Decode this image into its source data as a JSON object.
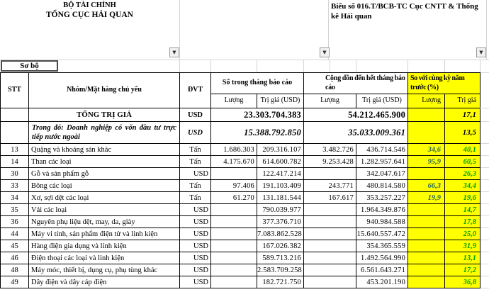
{
  "header": {
    "org_line1": "BỘ TÀI CHÍNH",
    "org_line2": "TỔNG CỤC HẢI QUAN",
    "form_label": "Biểu số 016.T/BCB-TC Cục CNTT & Thống kê Hải quan"
  },
  "icons": {
    "dropdown_glyph": "▼"
  },
  "tab": {
    "label": "Sơ bộ"
  },
  "table": {
    "columns": {
      "stt": "STT",
      "group": "Nhóm/Mặt hàng chủ yếu",
      "unit": "ĐVT",
      "month_group": "Số trong tháng báo cáo",
      "cumulative_group": "Cộng dồn đến hết tháng báo cáo",
      "yoy_group": "So với cùng kỳ năm trước (%)",
      "qty": "Lượng",
      "value_usd": "Trị giá (USD)",
      "cum_qty": "Lượng",
      "cum_value_usd": "Trị giá (USD)",
      "yoy_qty": "Lượng",
      "yoy_value": "Trị giá"
    },
    "total_row": {
      "name": "TỔNG TRỊ GIÁ",
      "unit": "USD",
      "value_month": "23.303.704.383",
      "value_cum": "54.212.465.900",
      "yoy_value": "17,1"
    },
    "fdi_row": {
      "name": "Trong đó: Doanh nghiệp có vốn đầu tư trực tiếp nước ngoài",
      "unit": "USD",
      "value_month": "15.388.792.850",
      "value_cum": "35.033.009.361",
      "yoy_value": "13,5"
    },
    "rows": [
      {
        "stt": "13",
        "name": "Quặng và khoáng sản khác",
        "unit": "Tấn",
        "unit_align": "center",
        "qty_month": "1.686.303",
        "value_month": "209.316.107",
        "qty_cum": "3.482.726",
        "value_cum": "436.714.546",
        "yoy_qty": "34,6",
        "yoy_value": "40,1"
      },
      {
        "stt": "14",
        "name": "Than các loại",
        "unit": "Tấn",
        "unit_align": "center",
        "qty_month": "4.175.670",
        "value_month": "614.600.782",
        "qty_cum": "9.253.428",
        "value_cum": "1.282.957.641",
        "yoy_qty": "95,9",
        "yoy_value": "60,5"
      },
      {
        "stt": "30",
        "name": "Gỗ và sản phẩm gỗ",
        "unit": "USD",
        "unit_align": "right",
        "qty_month": "",
        "value_month": "122.417.214",
        "qty_cum": "",
        "value_cum": "342.047.617",
        "yoy_qty": "",
        "yoy_value": "26,3"
      },
      {
        "stt": "33",
        "name": "Bông các loại",
        "unit": "Tấn",
        "unit_align": "center",
        "qty_month": "97.406",
        "value_month": "191.103.409",
        "qty_cum": "243.771",
        "value_cum": "480.814.580",
        "yoy_qty": "66,3",
        "yoy_value": "34,4"
      },
      {
        "stt": "34",
        "name": "Xơ, sợi dệt các loại",
        "unit": "Tấn",
        "unit_align": "center",
        "qty_month": "61.270",
        "value_month": "131.181.544",
        "qty_cum": "167.617",
        "value_cum": "353.257.227",
        "yoy_qty": "19,9",
        "yoy_value": "19,6"
      },
      {
        "stt": "35",
        "name": "Vải các loại",
        "unit": "USD",
        "unit_align": "right",
        "qty_month": "",
        "value_month": "790.039.977",
        "qty_cum": "",
        "value_cum": "1.964.349.876",
        "yoy_qty": "",
        "yoy_value": "14,7"
      },
      {
        "stt": "36",
        "name": "Nguyên phụ liệu dệt, may, da, giày",
        "unit": "USD",
        "unit_align": "right",
        "qty_month": "",
        "value_month": "377.376.710",
        "qty_cum": "",
        "value_cum": "940.984.588",
        "yoy_qty": "",
        "yoy_value": "17,8"
      },
      {
        "stt": "44",
        "name": "Máy vi tính, sản phẩm điện tử và linh kiện",
        "unit": "USD",
        "unit_align": "right",
        "qty_month": "",
        "value_month": "7.083.862.528",
        "qty_cum": "",
        "value_cum": "15.640.557.472",
        "yoy_qty": "",
        "yoy_value": "25,0"
      },
      {
        "stt": "45",
        "name": "Hàng điện gia dụng và linh kiện",
        "unit": "USD",
        "unit_align": "right",
        "qty_month": "",
        "value_month": "167.026.382",
        "qty_cum": "",
        "value_cum": "354.365.559",
        "yoy_qty": "",
        "yoy_value": "31,9"
      },
      {
        "stt": "46",
        "name": "Điện thoại các loại và linh kiện",
        "unit": "USD",
        "unit_align": "right",
        "qty_month": "",
        "value_month": "589.713.216",
        "qty_cum": "",
        "value_cum": "1.492.564.990",
        "yoy_qty": "",
        "yoy_value": "13,1"
      },
      {
        "stt": "48",
        "name": "Máy móc, thiết bị, dụng cụ, phụ tùng khác",
        "unit": "USD",
        "unit_align": "right",
        "qty_month": "",
        "value_month": "2.583.709.258",
        "qty_cum": "",
        "value_cum": "6.561.643.271",
        "yoy_qty": "",
        "yoy_value": "17,2"
      },
      {
        "stt": "49",
        "name": "Dây điện và dây cáp điện",
        "unit": "USD",
        "unit_align": "right",
        "qty_month": "",
        "value_month": "182.721.750",
        "qty_cum": "",
        "value_cum": "453.201.190",
        "yoy_qty": "",
        "yoy_value": "36,8"
      }
    ]
  },
  "colors": {
    "highlight": "#ffff00",
    "yoy_qty_text": "#2d6a4f",
    "yoy_value_text": "#00a000"
  }
}
